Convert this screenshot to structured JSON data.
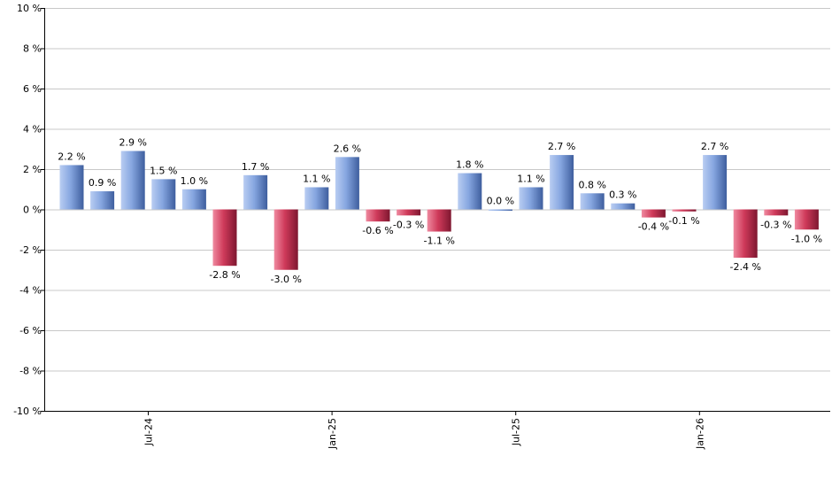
{
  "chart_data": {
    "type": "bar",
    "y_unit_suffix": " %",
    "ylim": [
      -10,
      10
    ],
    "y_ticks": [
      10,
      8,
      6,
      4,
      2,
      0,
      -2,
      -4,
      -6,
      -8,
      -10
    ],
    "y_tick_labels": [
      "10 %",
      "8 %",
      "6 %",
      "4 %",
      "2 %",
      "0 %",
      "-2 %",
      "-4 %",
      "-6 %",
      "-8 %",
      "-10 %"
    ],
    "grid": true,
    "x_tick_labels": [
      {
        "label": "Jul-24",
        "index": 2.5
      },
      {
        "label": "Jan-25",
        "index": 8.5
      },
      {
        "label": "Jul-25",
        "index": 14.5
      },
      {
        "label": "Jan-26",
        "index": 20.5
      }
    ],
    "values": [
      2.2,
      0.9,
      2.9,
      1.5,
      1.0,
      -2.8,
      1.7,
      -3.0,
      1.1,
      2.6,
      -0.6,
      -0.3,
      -1.1,
      1.8,
      0.0,
      1.1,
      2.7,
      0.8,
      0.3,
      -0.4,
      -0.1,
      2.7,
      -2.4,
      -0.3,
      -1.0
    ],
    "value_labels": [
      "2.2 %",
      "0.9 %",
      "2.9 %",
      "1.5 %",
      "1.0 %",
      "-2.8 %",
      "1.7 %",
      "-3.0 %",
      "1.1 %",
      "2.6 %",
      "-0.6 %",
      "-0.3 %",
      "-1.1 %",
      "1.8 %",
      "0.0 %",
      "1.1 %",
      "2.7 %",
      "0.8 %",
      "0.3 %",
      "-0.4 %",
      "-0.1 %",
      "2.7 %",
      "-2.4 %",
      "-0.3 %",
      "-1.0 %"
    ],
    "colors": {
      "positive": "#7496d6",
      "negative": "#c3284a",
      "grid": "#c8c8c8",
      "axis": "#000000"
    }
  }
}
